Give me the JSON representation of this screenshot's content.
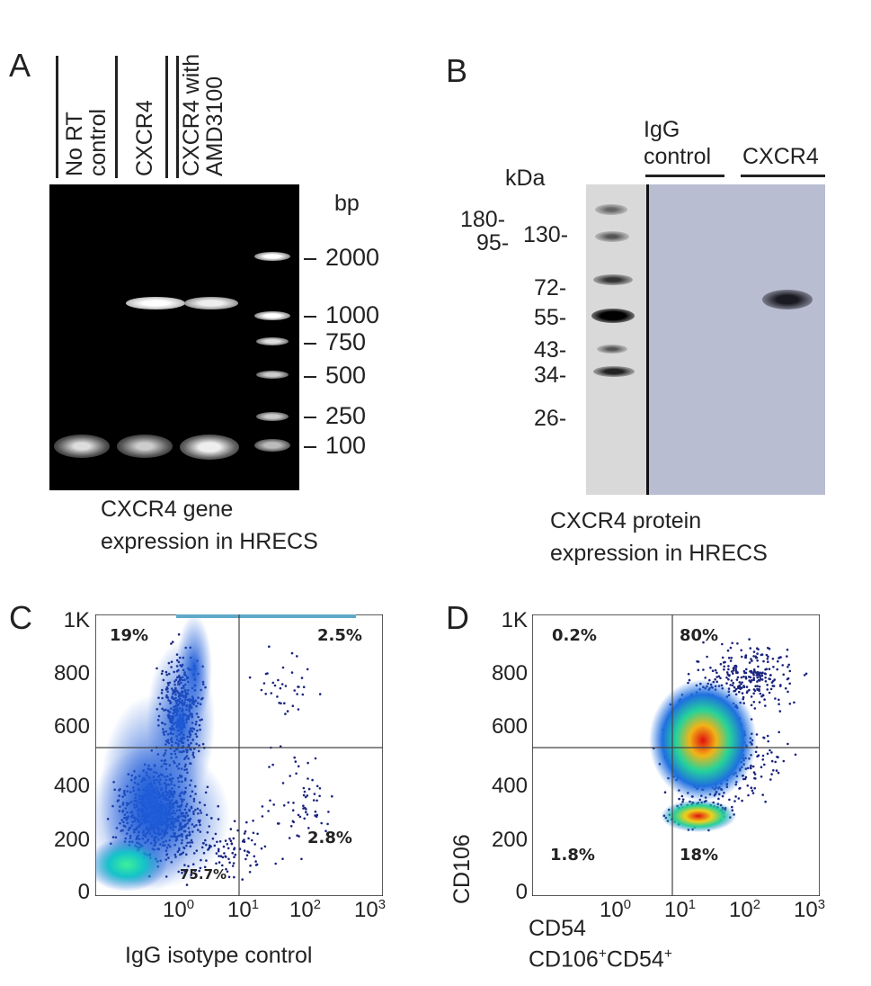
{
  "panel_a": {
    "letter": "A",
    "lanes": [
      {
        "line1": "No RT",
        "line2": "control"
      },
      {
        "line1": "CXCR4",
        "line2": ""
      },
      {
        "line1": "CXCR4 with",
        "line2": "AMD3100"
      }
    ],
    "unit": "bp",
    "markers": [
      "2000",
      "1000",
      "750",
      "500",
      "250",
      "100"
    ],
    "caption_line1": "CXCR4 gene",
    "caption_line2": "expression in HRECS"
  },
  "panel_b": {
    "letter": "B",
    "unit": "kDa",
    "lane1_line1": "IgG",
    "lane1_line2": "control",
    "lane2": "CXCR4",
    "markers": [
      "180",
      "95",
      "130",
      "72",
      "55",
      "43",
      "34",
      "26"
    ],
    "caption_line1": "CXCR4 protein",
    "caption_line2": "expression in HRECS"
  },
  "panel_c": {
    "letter": "C",
    "yticks": [
      "1K",
      "800",
      "600",
      "400",
      "200",
      "0"
    ],
    "xtick_base": "10",
    "xtick_exps": [
      "0",
      "1",
      "2",
      "3"
    ],
    "quadrants": {
      "ul": "19%",
      "ur": "2.5%",
      "ll": "75.7%",
      "lr": "2.8%"
    },
    "xlabel": "IgG isotype control"
  },
  "panel_d": {
    "letter": "D",
    "yticks": [
      "1K",
      "800",
      "600",
      "400",
      "200",
      "0"
    ],
    "xtick_base": "10",
    "xtick_exps": [
      "0",
      "1",
      "2",
      "3"
    ],
    "quadrants": {
      "ul": "0.2%",
      "ur": "80%",
      "ll": "1.8%",
      "lr": "18%"
    },
    "ylabel": "CD106",
    "xlabel": "CD54",
    "xlabel2_a": "CD106",
    "xlabel2_sup1": "+",
    "xlabel2_b": "CD54",
    "xlabel2_sup2": "+"
  },
  "colors": {
    "gel_bg": "#000000",
    "blot_bg": "#b9bdd1",
    "ladder_bg": "#d9d9d9",
    "dot_blue": "#1a237e"
  }
}
